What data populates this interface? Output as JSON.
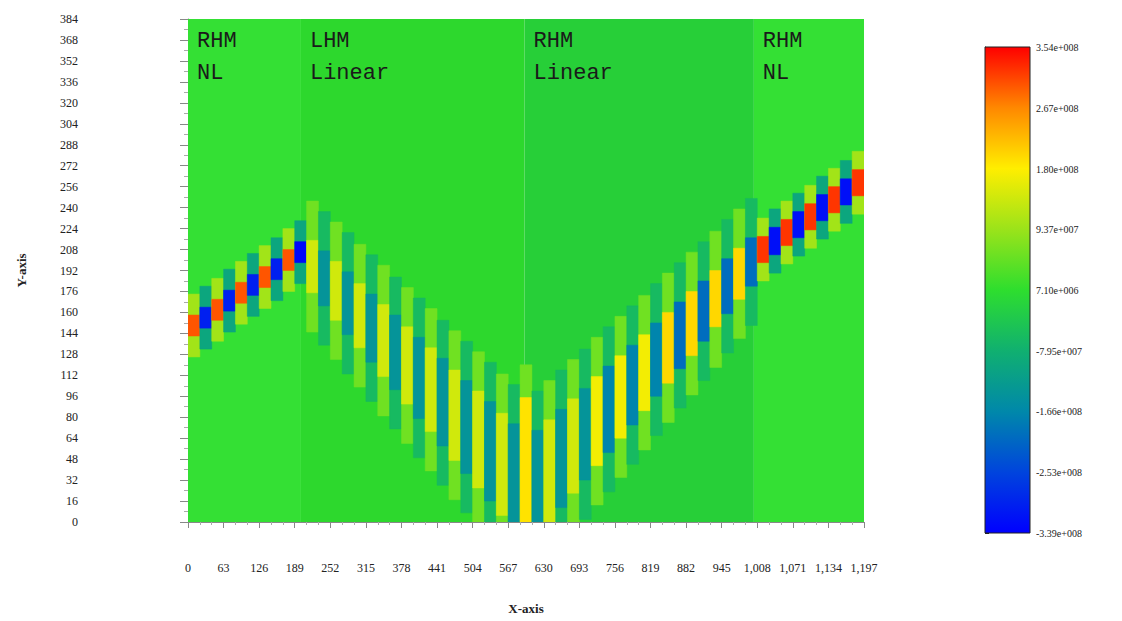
{
  "chart_data": {
    "type": "heatmap",
    "x_label": "X-axis",
    "y_label": "Y-axis",
    "xlim": [
      0,
      1197
    ],
    "xticks": [
      0,
      63,
      126,
      189,
      252,
      315,
      378,
      441,
      504,
      567,
      630,
      693,
      756,
      819,
      882,
      945,
      1008,
      1071,
      1134,
      1197
    ],
    "ylim": [
      0,
      384
    ],
    "yticks": [
      0,
      16,
      32,
      48,
      64,
      80,
      96,
      112,
      128,
      144,
      160,
      176,
      192,
      208,
      224,
      240,
      256,
      272,
      288,
      304,
      320,
      336,
      352,
      368,
      384
    ],
    "regions": [
      {
        "label": [
          "RHM",
          "NL"
        ],
        "x": [
          0,
          200
        ],
        "color": "#34e034"
      },
      {
        "label": [
          "LHM",
          "Linear"
        ],
        "x": [
          200,
          596
        ],
        "color": "#2dd82d"
      },
      {
        "label": [
          "RHM",
          "Linear"
        ],
        "x": [
          596,
          1002
        ],
        "color": "#27cf38"
      },
      {
        "label": [
          "RHM",
          "NL"
        ],
        "x": [
          1002,
          1197
        ],
        "color": "#34e034"
      }
    ],
    "cells": [
      [
        0,
        21,
        126,
        174,
        100000000
      ],
      [
        0,
        21,
        142,
        158,
        300000000
      ],
      [
        21,
        42,
        132,
        180,
        -100000000
      ],
      [
        21,
        42,
        148,
        164,
        -300000000
      ],
      [
        42,
        63,
        138,
        186,
        100000000
      ],
      [
        42,
        63,
        154,
        170,
        300000000
      ],
      [
        63,
        84,
        145,
        193,
        -100000000
      ],
      [
        63,
        84,
        161,
        177,
        -300000000
      ],
      [
        84,
        105,
        151,
        199,
        100000000
      ],
      [
        84,
        105,
        167,
        183,
        300000000
      ],
      [
        105,
        126,
        157,
        205,
        -100000000
      ],
      [
        105,
        126,
        173,
        189,
        -300000000
      ],
      [
        126,
        147,
        163,
        211,
        100000000
      ],
      [
        126,
        147,
        179,
        195,
        300000000
      ],
      [
        147,
        168,
        169,
        217,
        -100000000
      ],
      [
        147,
        168,
        185,
        201,
        -300000000
      ],
      [
        168,
        189,
        176,
        224,
        100000000
      ],
      [
        168,
        189,
        192,
        208,
        300000000
      ],
      [
        189,
        210,
        182,
        230,
        -100000000
      ],
      [
        189,
        210,
        198,
        214,
        -330000000
      ],
      [
        210,
        231,
        145,
        245,
        60000000
      ],
      [
        210,
        231,
        175,
        215,
        140000000
      ],
      [
        231,
        252,
        135,
        237,
        -60000000
      ],
      [
        231,
        252,
        165,
        207,
        -140000000
      ],
      [
        252,
        273,
        124,
        229,
        60000000
      ],
      [
        252,
        273,
        154,
        199,
        140000000
      ],
      [
        273,
        294,
        113,
        221,
        -60000000
      ],
      [
        273,
        294,
        143,
        191,
        -140000000
      ],
      [
        294,
        315,
        103,
        212,
        60000000
      ],
      [
        294,
        315,
        133,
        182,
        140000000
      ],
      [
        315,
        336,
        92,
        204,
        -60000000
      ],
      [
        315,
        336,
        122,
        174,
        -140000000
      ],
      [
        336,
        357,
        81,
        196,
        60000000
      ],
      [
        336,
        357,
        111,
        166,
        140000000
      ],
      [
        357,
        378,
        71,
        187,
        -60000000
      ],
      [
        357,
        378,
        101,
        158,
        -140000000
      ],
      [
        378,
        399,
        60,
        179,
        60000000
      ],
      [
        378,
        399,
        90,
        149,
        140000000
      ],
      [
        399,
        420,
        49,
        171,
        -60000000
      ],
      [
        399,
        420,
        79,
        141,
        -140000000
      ],
      [
        420,
        441,
        39,
        163,
        60000000
      ],
      [
        420,
        441,
        69,
        133,
        140000000
      ],
      [
        441,
        462,
        28,
        154,
        -60000000
      ],
      [
        441,
        462,
        58,
        125,
        -140000000
      ],
      [
        462,
        483,
        17,
        146,
        60000000
      ],
      [
        462,
        483,
        47,
        116,
        140000000
      ],
      [
        483,
        504,
        7,
        138,
        -60000000
      ],
      [
        483,
        504,
        37,
        108,
        -140000000
      ],
      [
        504,
        525,
        0,
        130,
        60000000
      ],
      [
        504,
        525,
        26,
        100,
        140000000
      ],
      [
        525,
        546,
        0,
        122,
        -60000000
      ],
      [
        525,
        546,
        16,
        92,
        -140000000
      ],
      [
        546,
        567,
        0,
        113,
        60000000
      ],
      [
        546,
        567,
        5,
        83,
        140000000
      ],
      [
        567,
        588,
        0,
        105,
        -60000000
      ],
      [
        567,
        588,
        0,
        75,
        -140000000
      ],
      [
        588,
        609,
        0,
        120,
        60000000
      ],
      [
        588,
        609,
        0,
        95,
        190000000
      ],
      [
        609,
        630,
        0,
        100,
        -60000000
      ],
      [
        609,
        630,
        0,
        70,
        -140000000
      ],
      [
        630,
        651,
        0,
        108,
        60000000
      ],
      [
        630,
        651,
        0,
        78,
        140000000
      ],
      [
        651,
        672,
        0,
        116,
        -60000000
      ],
      [
        651,
        672,
        11,
        86,
        -140000000
      ],
      [
        672,
        693,
        0,
        124,
        60000000
      ],
      [
        672,
        693,
        22,
        94,
        140000000
      ],
      [
        693,
        714,
        2,
        132,
        -60000000
      ],
      [
        693,
        714,
        32,
        102,
        -140000000
      ],
      [
        714,
        735,
        13,
        141,
        60000000
      ],
      [
        714,
        735,
        43,
        111,
        170000000
      ],
      [
        735,
        756,
        23,
        149,
        -60000000
      ],
      [
        735,
        756,
        53,
        119,
        -170000000
      ],
      [
        756,
        777,
        34,
        157,
        60000000
      ],
      [
        756,
        777,
        64,
        127,
        170000000
      ],
      [
        777,
        798,
        44,
        165,
        -60000000
      ],
      [
        777,
        798,
        74,
        135,
        -170000000
      ],
      [
        798,
        819,
        55,
        173,
        60000000
      ],
      [
        798,
        819,
        85,
        143,
        170000000
      ],
      [
        819,
        840,
        66,
        182,
        -60000000
      ],
      [
        819,
        840,
        96,
        152,
        -170000000
      ],
      [
        840,
        861,
        76,
        190,
        60000000
      ],
      [
        840,
        861,
        106,
        160,
        200000000
      ],
      [
        861,
        882,
        87,
        198,
        -60000000
      ],
      [
        861,
        882,
        117,
        168,
        -200000000
      ],
      [
        882,
        903,
        97,
        206,
        60000000
      ],
      [
        882,
        903,
        127,
        176,
        200000000
      ],
      [
        903,
        924,
        108,
        214,
        -60000000
      ],
      [
        903,
        924,
        138,
        184,
        -200000000
      ],
      [
        924,
        945,
        118,
        222,
        60000000
      ],
      [
        924,
        945,
        149,
        192,
        200000000
      ],
      [
        945,
        966,
        129,
        231,
        -60000000
      ],
      [
        945,
        966,
        159,
        201,
        -200000000
      ],
      [
        966,
        987,
        140,
        239,
        60000000
      ],
      [
        966,
        987,
        170,
        209,
        200000000
      ],
      [
        987,
        1008,
        150,
        247,
        -60000000
      ],
      [
        987,
        1008,
        180,
        217,
        -200000000
      ],
      [
        1008,
        1029,
        184,
        232,
        100000000
      ],
      [
        1008,
        1029,
        198,
        218,
        320000000
      ],
      [
        1029,
        1050,
        190,
        239,
        -100000000
      ],
      [
        1029,
        1050,
        204,
        225,
        -320000000
      ],
      [
        1050,
        1071,
        197,
        245,
        100000000
      ],
      [
        1050,
        1071,
        211,
        231,
        320000000
      ],
      [
        1071,
        1092,
        203,
        251,
        -100000000
      ],
      [
        1071,
        1092,
        217,
        237,
        -320000000
      ],
      [
        1092,
        1113,
        209,
        257,
        100000000
      ],
      [
        1092,
        1113,
        223,
        243,
        320000000
      ],
      [
        1113,
        1134,
        216,
        264,
        -100000000
      ],
      [
        1113,
        1134,
        230,
        250,
        -320000000
      ],
      [
        1134,
        1155,
        222,
        270,
        100000000
      ],
      [
        1134,
        1155,
        236,
        256,
        320000000
      ],
      [
        1155,
        1176,
        228,
        276,
        -100000000
      ],
      [
        1155,
        1176,
        242,
        262,
        -320000000
      ],
      [
        1176,
        1197,
        235,
        283,
        100000000
      ],
      [
        1176,
        1197,
        249,
        269,
        320000000
      ]
    ],
    "colorbar": {
      "range": [
        -339000000,
        354000000
      ],
      "ticks": [
        {
          "value": 354000000,
          "label": "3.54e+008"
        },
        {
          "value": 267000000,
          "label": "2.67e+008"
        },
        {
          "value": 180000000,
          "label": "1.80e+008"
        },
        {
          "value": 93700000,
          "label": "9.37e+007"
        },
        {
          "value": 7100000,
          "label": "7.10e+006"
        },
        {
          "value": -79500000,
          "label": "-7.95e+007"
        },
        {
          "value": -166000000,
          "label": "-1.66e+008"
        },
        {
          "value": -253000000,
          "label": "-2.53e+008"
        },
        {
          "value": -339000000,
          "label": "-3.39e+008"
        }
      ],
      "colors": [
        "#0000ff",
        "#0044dd",
        "#0088aa",
        "#10b070",
        "#2ede2e",
        "#9be31a",
        "#ffee00",
        "#ff8800",
        "#ff0000"
      ]
    }
  }
}
